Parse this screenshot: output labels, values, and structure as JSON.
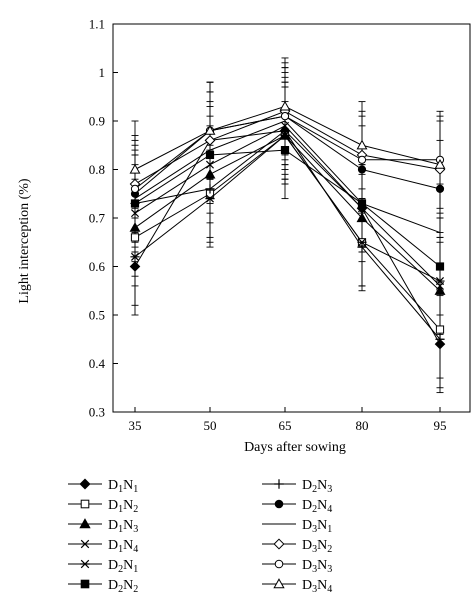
{
  "chart_data": {
    "type": "line",
    "title": "",
    "xlabel": "Days after sowing",
    "ylabel": "Light interception (%)",
    "x": [
      35,
      50,
      65,
      80,
      95
    ],
    "ylim": [
      0.3,
      1.1
    ],
    "yticks": [
      "0.3",
      "0.4",
      "0.5",
      "0.6",
      "0.7",
      "0.8",
      "0.9",
      "1",
      "1.1"
    ],
    "grid": false,
    "legend_position": "bottom",
    "series": [
      {
        "name": "D1N1",
        "label_main": "D",
        "label_sub1": "1",
        "label_mid": "N",
        "label_sub2": "1",
        "marker": "filled-diamond",
        "values": [
          0.6,
          0.86,
          0.88,
          0.72,
          0.44
        ],
        "errors": [
          0.1,
          0.1,
          0.1,
          0.09,
          0.1
        ]
      },
      {
        "name": "D1N2",
        "label_main": "D",
        "label_sub1": "1",
        "label_mid": "N",
        "label_sub2": "2",
        "marker": "open-square",
        "values": [
          0.66,
          0.75,
          0.87,
          0.65,
          0.47
        ],
        "errors": [
          0.1,
          0.1,
          0.1,
          0.09,
          0.1
        ]
      },
      {
        "name": "D1N3",
        "label_main": "D",
        "label_sub1": "1",
        "label_mid": "N",
        "label_sub2": "3",
        "marker": "filled-triangle",
        "values": [
          0.68,
          0.79,
          0.87,
          0.7,
          0.55
        ],
        "errors": [
          0.1,
          0.1,
          0.1,
          0.09,
          0.1
        ]
      },
      {
        "name": "D1N4",
        "label_main": "D",
        "label_sub1": "1",
        "label_mid": "N",
        "label_sub2": "4",
        "marker": "x",
        "values": [
          0.71,
          0.81,
          0.89,
          0.72,
          0.56
        ],
        "errors": [
          0.1,
          0.1,
          0.1,
          0.09,
          0.1
        ]
      },
      {
        "name": "D2N1",
        "label_main": "D",
        "label_sub1": "2",
        "label_mid": "N",
        "label_sub2": "1",
        "marker": "star",
        "values": [
          0.62,
          0.74,
          0.87,
          0.65,
          0.57
        ],
        "errors": [
          0.1,
          0.1,
          0.1,
          0.09,
          0.1
        ]
      },
      {
        "name": "D2N2",
        "label_main": "D",
        "label_sub1": "2",
        "label_mid": "N",
        "label_sub2": "2",
        "marker": "filled-square",
        "values": [
          0.73,
          0.83,
          0.84,
          0.73,
          0.6
        ],
        "errors": [
          0.1,
          0.1,
          0.1,
          0.09,
          0.1
        ]
      },
      {
        "name": "D2N3",
        "label_main": "D",
        "label_sub1": "2",
        "label_mid": "N",
        "label_sub2": "3",
        "marker": "plus",
        "values": [
          0.73,
          0.76,
          0.88,
          0.64,
          0.45
        ],
        "errors": [
          0.1,
          0.1,
          0.1,
          0.09,
          0.1
        ]
      },
      {
        "name": "D2N4",
        "label_main": "D",
        "label_sub1": "2",
        "label_mid": "N",
        "label_sub2": "4",
        "marker": "filled-circle",
        "values": [
          0.75,
          0.88,
          0.91,
          0.8,
          0.76
        ],
        "errors": [
          0.1,
          0.1,
          0.1,
          0.09,
          0.1
        ]
      },
      {
        "name": "D3N1",
        "label_main": "D",
        "label_sub1": "3",
        "label_mid": "N",
        "label_sub2": "1",
        "marker": "none",
        "values": [
          0.74,
          0.84,
          0.9,
          0.73,
          0.67
        ],
        "errors": [
          0.1,
          0.1,
          0.1,
          0.09,
          0.1
        ]
      },
      {
        "name": "D3N2",
        "label_main": "D",
        "label_sub1": "3",
        "label_mid": "N",
        "label_sub2": "2",
        "marker": "open-diamond",
        "values": [
          0.77,
          0.86,
          0.92,
          0.83,
          0.8
        ],
        "errors": [
          0.1,
          0.1,
          0.1,
          0.09,
          0.1
        ]
      },
      {
        "name": "D3N3",
        "label_main": "D",
        "label_sub1": "3",
        "label_mid": "N",
        "label_sub2": "3",
        "marker": "open-circle",
        "values": [
          0.76,
          0.88,
          0.91,
          0.82,
          0.82
        ],
        "errors": [
          0.1,
          0.1,
          0.1,
          0.09,
          0.1
        ]
      },
      {
        "name": "D3N4",
        "label_main": "D",
        "label_sub1": "3",
        "label_mid": "N",
        "label_sub2": "4",
        "marker": "open-triangle",
        "values": [
          0.8,
          0.88,
          0.93,
          0.85,
          0.81
        ],
        "errors": [
          0.1,
          0.1,
          0.1,
          0.09,
          0.1
        ]
      }
    ]
  }
}
